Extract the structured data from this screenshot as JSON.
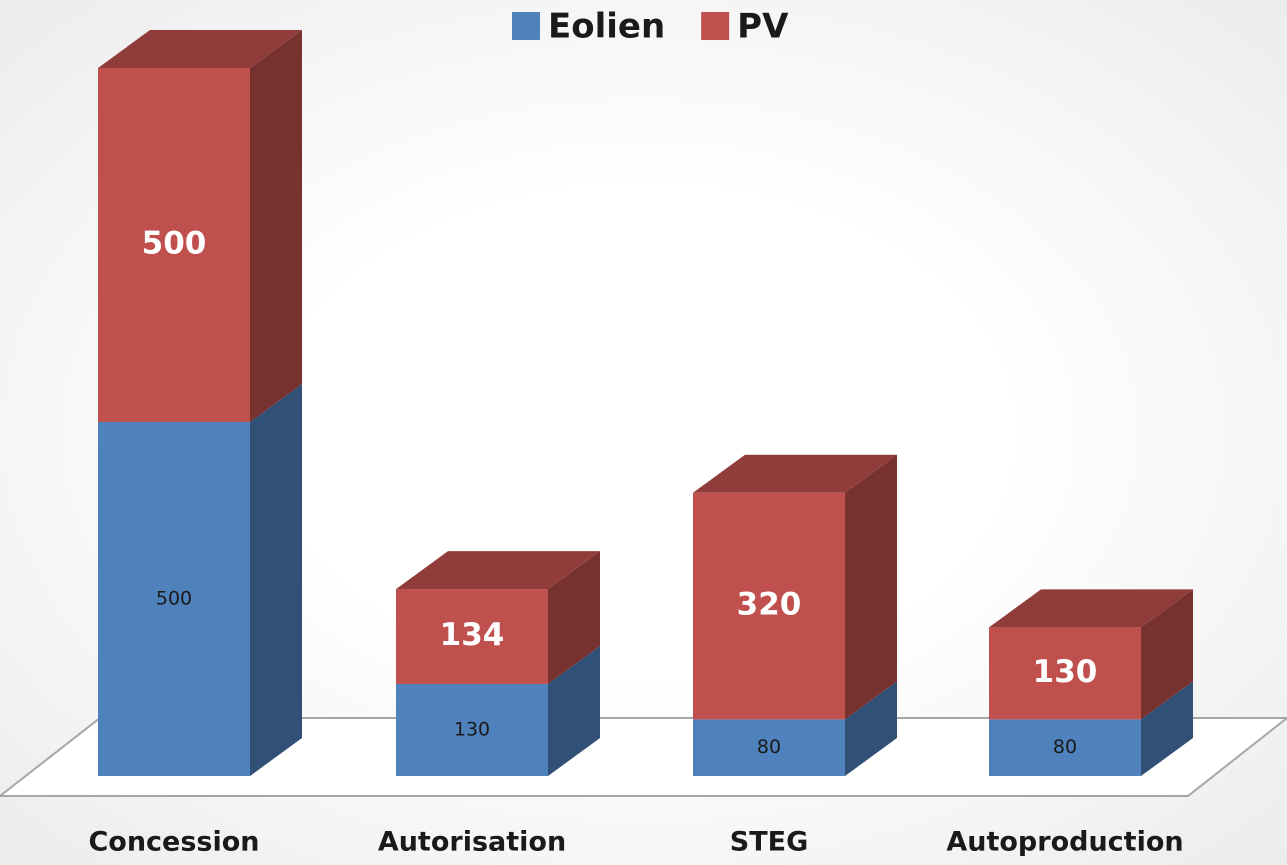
{
  "chart_data": {
    "type": "bar3d_stacked",
    "categories": [
      "Concession",
      "Autorisation",
      "STEG",
      "Autoproduction"
    ],
    "series": [
      {
        "name": "Eolien",
        "color": "#4f81bd",
        "values": [
          500,
          130,
          80,
          80
        ]
      },
      {
        "name": "PV",
        "color": "#c0504d",
        "values": [
          500,
          134,
          320,
          130
        ]
      }
    ]
  }
}
